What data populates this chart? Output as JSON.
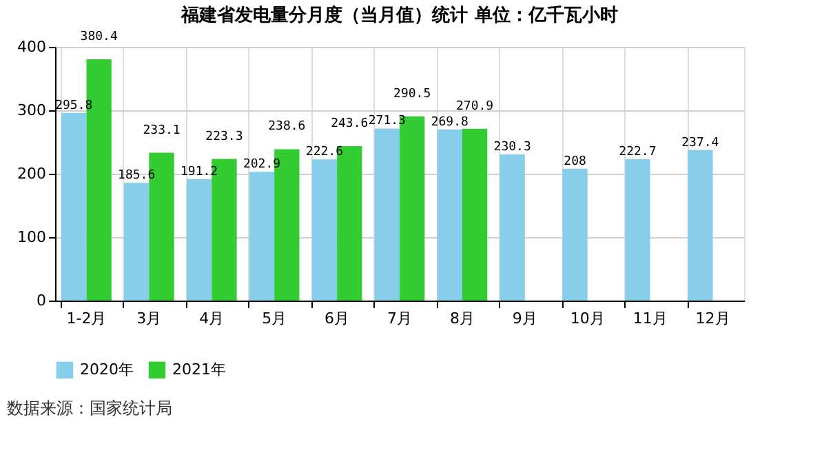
{
  "chart_data": {
    "type": "bar",
    "title": "福建省发电量分月度（当月值）统计  单位：亿千瓦小时",
    "categories": [
      "1-2月",
      "3月",
      "4月",
      "5月",
      "6月",
      "7月",
      "8月",
      "9月",
      "10月",
      "11月",
      "12月"
    ],
    "series": [
      {
        "name": "2020年",
        "color": "#87ceeb",
        "values": [
          295.8,
          185.6,
          191.2,
          202.9,
          222.6,
          271.3,
          269.8,
          230.3,
          208,
          222.7,
          237.4
        ]
      },
      {
        "name": "2021年",
        "color": "#33cc33",
        "values": [
          380.4,
          233.1,
          223.3,
          238.6,
          243.6,
          290.5,
          270.9,
          null,
          null,
          null,
          null
        ]
      }
    ],
    "ylim": [
      0,
      400
    ],
    "yticks": [
      0,
      100,
      200,
      300,
      400
    ],
    "grid": true,
    "legend": "bottom",
    "data_labels": true,
    "annotations": [
      "数据来源：国家统计局"
    ]
  }
}
